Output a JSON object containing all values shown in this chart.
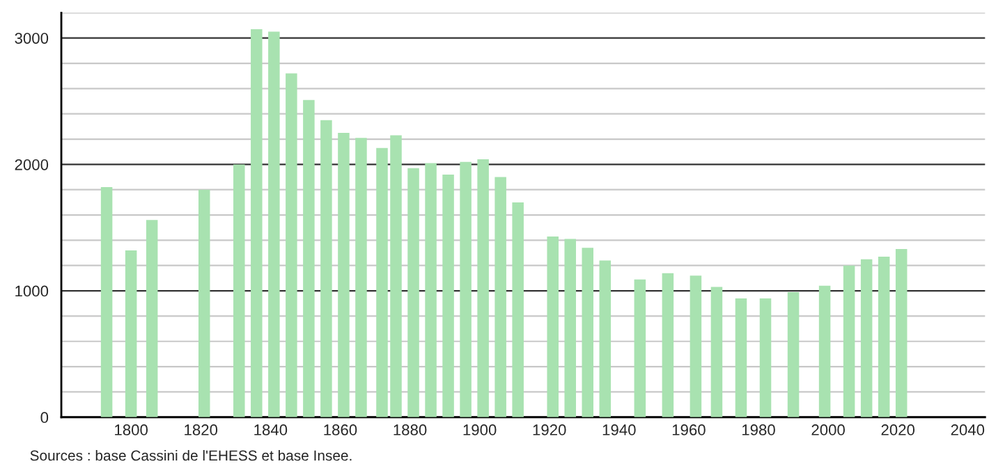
{
  "chart_data": {
    "type": "bar",
    "x": [
      1793,
      1800,
      1806,
      1821,
      1831,
      1836,
      1841,
      1846,
      1851,
      1856,
      1861,
      1866,
      1872,
      1876,
      1881,
      1886,
      1891,
      1896,
      1901,
      1906,
      1911,
      1921,
      1926,
      1931,
      1936,
      1946,
      1954,
      1962,
      1968,
      1975,
      1982,
      1990,
      1999,
      2006,
      2011,
      2016,
      2021
    ],
    "values": [
      1820,
      1320,
      1560,
      1800,
      2000,
      3070,
      3050,
      2720,
      2510,
      2350,
      2250,
      2210,
      2130,
      2230,
      1970,
      2010,
      1920,
      2020,
      2040,
      1900,
      1700,
      1430,
      1410,
      1340,
      1240,
      1090,
      1140,
      1120,
      1030,
      940,
      940,
      990,
      1040,
      1200,
      1250,
      1270,
      1330
    ],
    "color": "#a8e2b0",
    "xlim": [
      1780,
      2045
    ],
    "xticks": [
      1800,
      1820,
      1840,
      1860,
      1880,
      1900,
      1920,
      1940,
      1960,
      1980,
      2000,
      2020,
      2040
    ],
    "ylim": [
      0,
      3200
    ],
    "yticks": [
      0,
      {
        "value": 200,
        "label": null
      },
      {
        "value": 400,
        "label": null
      },
      {
        "value": 600,
        "label": null
      },
      {
        "value": 800,
        "label": null
      },
      1000,
      {
        "value": 1200,
        "label": null
      },
      {
        "value": 1400,
        "label": null
      },
      {
        "value": 1600,
        "label": null
      },
      {
        "value": 1800,
        "label": null
      },
      2000,
      {
        "value": 2200,
        "label": null
      },
      {
        "value": 2400,
        "label": null
      },
      {
        "value": 2600,
        "label": null
      },
      {
        "value": 2800,
        "label": null
      },
      3000,
      {
        "value": 3200,
        "label": null
      }
    ],
    "grid": "y",
    "annotations": [
      "Sources : base Cassini de l'EHESS et base Insee."
    ]
  }
}
